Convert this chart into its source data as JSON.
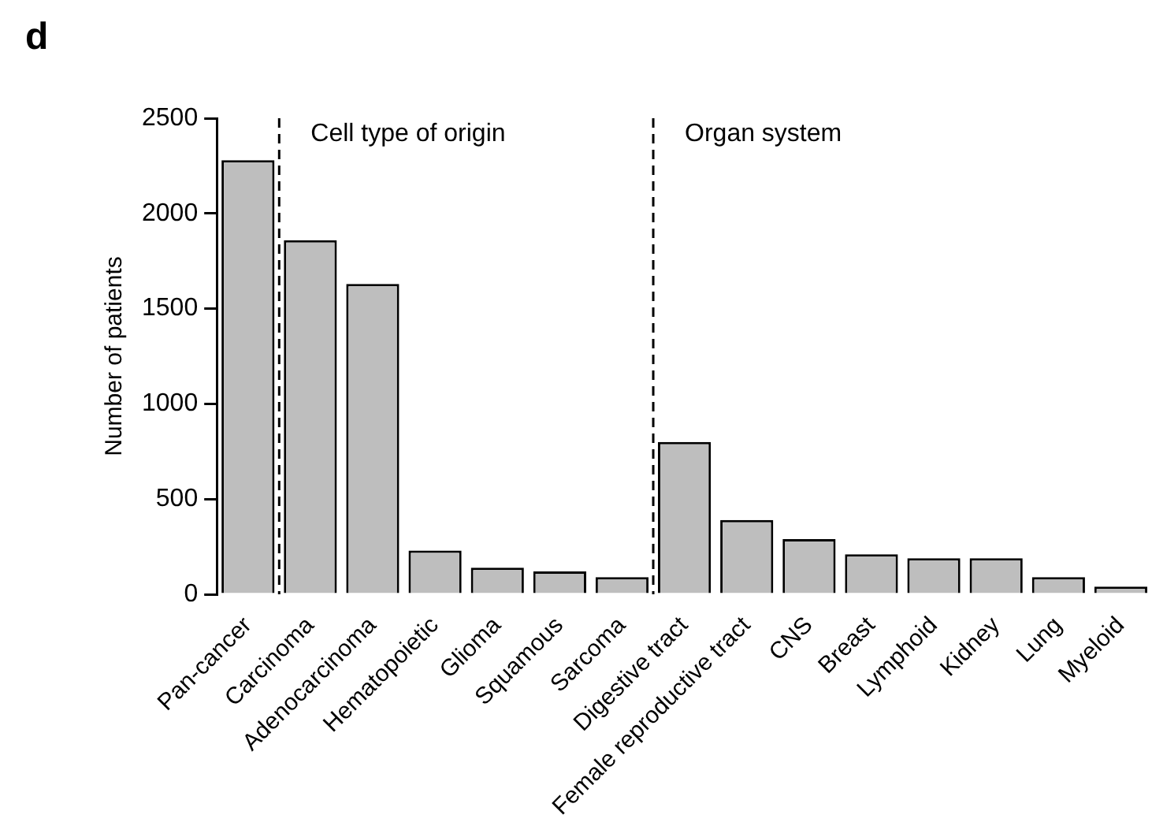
{
  "chart_data": {
    "type": "bar",
    "ylabel": "Number of patients",
    "categories": [
      "Pan-cancer",
      "Carcinoma",
      "Adenocarcinoma",
      "Hematopoietic",
      "Glioma",
      "Squamous",
      "Sarcoma",
      "Digestive tract",
      "Female reproductive tract",
      "CNS",
      "Breast",
      "Lymphoid",
      "Kidney",
      "Lung",
      "Myeloid"
    ],
    "values": [
      2280,
      1860,
      1630,
      230,
      140,
      120,
      90,
      800,
      390,
      290,
      210,
      190,
      190,
      90,
      40
    ],
    "color": "#bebebe",
    "ylim": [
      0,
      2500
    ],
    "yticks": [
      0,
      500,
      1000,
      1500,
      2000,
      2500
    ],
    "annotations": [
      "d",
      "Cell type of origin",
      "Organ system"
    ],
    "grid": false,
    "legend": false
  }
}
